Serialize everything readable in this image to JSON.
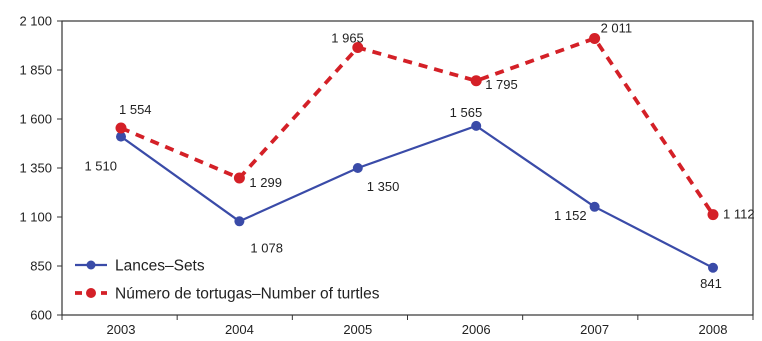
{
  "chart_data": {
    "type": "line",
    "categories": [
      "2003",
      "2004",
      "2005",
      "2006",
      "2007",
      "2008"
    ],
    "ylim": [
      600,
      2100
    ],
    "yticks": [
      600,
      850,
      1100,
      1350,
      1600,
      1850,
      2100
    ],
    "ytick_labels": [
      "600",
      "850",
      "1 100",
      "1 350",
      "1 600",
      "1 850",
      "2 100"
    ],
    "grid": false,
    "legend_position": "bottom-left",
    "series": [
      {
        "name": "Lances–Sets",
        "color": "#3a4ba8",
        "style": "solid",
        "values": [
          1510,
          1078,
          1350,
          1565,
          1152,
          841
        ],
        "labels": [
          "1 510",
          "1 078",
          "1 350",
          "1 565",
          "1 152",
          "841"
        ]
      },
      {
        "name": "Número de tortugas–Number of turtles",
        "color": "#d42027",
        "style": "dashed",
        "values": [
          1554,
          1299,
          1965,
          1795,
          2011,
          1112
        ],
        "labels": [
          "1 554",
          "1 299",
          "1 965",
          "1 795",
          "2 011",
          "1 112"
        ]
      }
    ]
  }
}
